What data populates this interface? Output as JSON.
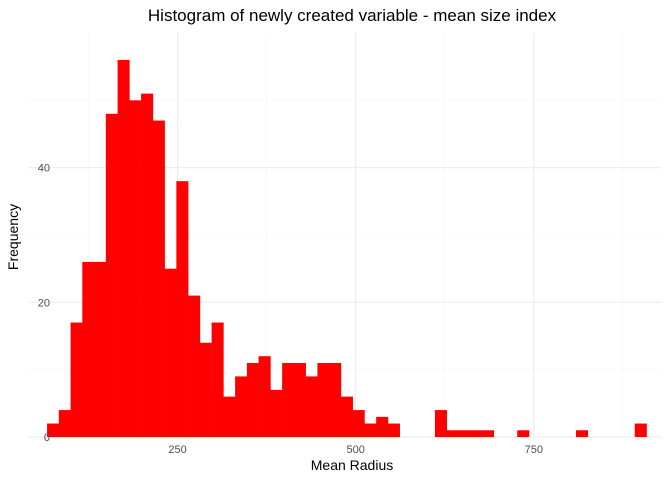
{
  "chart_data": {
    "type": "bar",
    "title": "Histogram of newly created variable - mean size index",
    "xlabel": "Mean Radius",
    "ylabel": "Frequency",
    "xlim": [
      40,
      930
    ],
    "ylim": [
      0,
      60
    ],
    "x_ticks": [
      250,
      500,
      750
    ],
    "y_ticks": [
      0,
      20,
      40
    ],
    "grid": true,
    "legend": "none",
    "bar_color": "#ff0000",
    "grid_major_color": "#ebebeb",
    "grid_minor_color": "#f5f5f5",
    "bin_width": 16.5,
    "bins": [
      {
        "x": 75,
        "count": 2
      },
      {
        "x": 91.5,
        "count": 4
      },
      {
        "x": 108,
        "count": 17
      },
      {
        "x": 124.5,
        "count": 26
      },
      {
        "x": 141,
        "count": 26
      },
      {
        "x": 157.5,
        "count": 48
      },
      {
        "x": 174,
        "count": 56
      },
      {
        "x": 190.5,
        "count": 50
      },
      {
        "x": 207,
        "count": 51
      },
      {
        "x": 223.5,
        "count": 47
      },
      {
        "x": 240,
        "count": 25
      },
      {
        "x": 256.5,
        "count": 38
      },
      {
        "x": 273,
        "count": 21
      },
      {
        "x": 289.5,
        "count": 14
      },
      {
        "x": 306,
        "count": 17
      },
      {
        "x": 322.5,
        "count": 6
      },
      {
        "x": 339,
        "count": 9
      },
      {
        "x": 355.5,
        "count": 11
      },
      {
        "x": 372,
        "count": 12
      },
      {
        "x": 388.5,
        "count": 7
      },
      {
        "x": 405,
        "count": 11
      },
      {
        "x": 421.5,
        "count": 11
      },
      {
        "x": 438,
        "count": 9
      },
      {
        "x": 454.5,
        "count": 11
      },
      {
        "x": 471,
        "count": 11
      },
      {
        "x": 487.5,
        "count": 6
      },
      {
        "x": 504,
        "count": 4
      },
      {
        "x": 520.5,
        "count": 2
      },
      {
        "x": 537,
        "count": 3
      },
      {
        "x": 553.5,
        "count": 2
      },
      {
        "x": 619.5,
        "count": 4
      },
      {
        "x": 636,
        "count": 1
      },
      {
        "x": 652.5,
        "count": 1
      },
      {
        "x": 669,
        "count": 1
      },
      {
        "x": 685.5,
        "count": 1
      },
      {
        "x": 735,
        "count": 1
      },
      {
        "x": 817.5,
        "count": 1
      },
      {
        "x": 900,
        "count": 2
      }
    ]
  }
}
